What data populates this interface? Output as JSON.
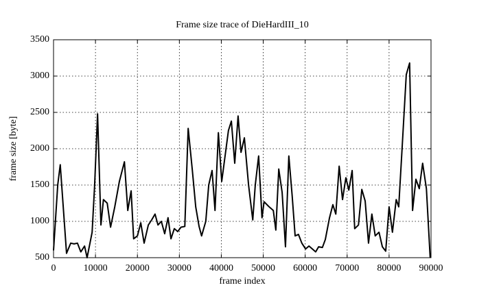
{
  "chart_data": {
    "type": "line",
    "title": "Frame size trace of DieHardIII_10",
    "xlabel": "frame index",
    "ylabel": "frame size [byte]",
    "color": "#000000",
    "grid": true,
    "xlim": [
      0,
      90000
    ],
    "xticks": [
      0,
      10000,
      20000,
      30000,
      40000,
      50000,
      60000,
      70000,
      80000,
      90000
    ],
    "ylim": [
      500,
      3500
    ],
    "yticks": [
      500,
      1000,
      1500,
      2000,
      2500,
      3000,
      3500
    ],
    "x": [
      0,
      1000,
      1600,
      3100,
      4100,
      4900,
      5700,
      6500,
      7400,
      8000,
      9200,
      9800,
      10500,
      11300,
      11900,
      12800,
      13600,
      14600,
      15700,
      16900,
      17700,
      18500,
      19100,
      20000,
      20800,
      21600,
      22600,
      23400,
      24200,
      24900,
      25700,
      26500,
      27300,
      28000,
      28800,
      29600,
      30400,
      31300,
      32100,
      33100,
      33900,
      34700,
      35300,
      36300,
      37000,
      37800,
      38500,
      39300,
      40100,
      40900,
      41700,
      42400,
      43200,
      44000,
      44700,
      45500,
      46500,
      47500,
      48100,
      48900,
      49700,
      50200,
      51400,
      52400,
      53000,
      53700,
      54500,
      55300,
      56100,
      56900,
      57600,
      58400,
      59200,
      60100,
      60900,
      61700,
      62500,
      63200,
      64100,
      64800,
      65800,
      66600,
      67300,
      68100,
      68900,
      69700,
      70400,
      71200,
      71800,
      72700,
      73500,
      74300,
      75100,
      75900,
      76700,
      77600,
      78400,
      79200,
      80000,
      80800,
      81700,
      82300,
      83100,
      84100,
      84900,
      85600,
      86400,
      87200,
      88000,
      88900,
      89800
    ],
    "values": [
      600,
      1500,
      1780,
      560,
      700,
      690,
      700,
      580,
      660,
      500,
      850,
      1500,
      2480,
      950,
      1300,
      1250,
      920,
      1200,
      1550,
      1820,
      1150,
      1420,
      760,
      800,
      980,
      700,
      950,
      1020,
      1100,
      950,
      1000,
      830,
      1050,
      760,
      900,
      860,
      920,
      930,
      2280,
      1700,
      1200,
      930,
      800,
      1000,
      1500,
      1700,
      1150,
      2220,
      1550,
      1900,
      2250,
      2380,
      1800,
      2450,
      1950,
      2150,
      1500,
      1020,
      1500,
      1900,
      1050,
      1270,
      1200,
      1150,
      880,
      1720,
      1400,
      650,
      1900,
      1350,
      800,
      820,
      700,
      620,
      660,
      620,
      580,
      650,
      640,
      750,
      1050,
      1230,
      1100,
      1760,
      1300,
      1600,
      1430,
      1700,
      900,
      950,
      1440,
      1280,
      700,
      1100,
      800,
      850,
      650,
      590,
      1200,
      850,
      1300,
      1200,
      2000,
      3020,
      3180,
      1150,
      1580,
      1450,
      1800,
      1450,
      500
    ]
  }
}
